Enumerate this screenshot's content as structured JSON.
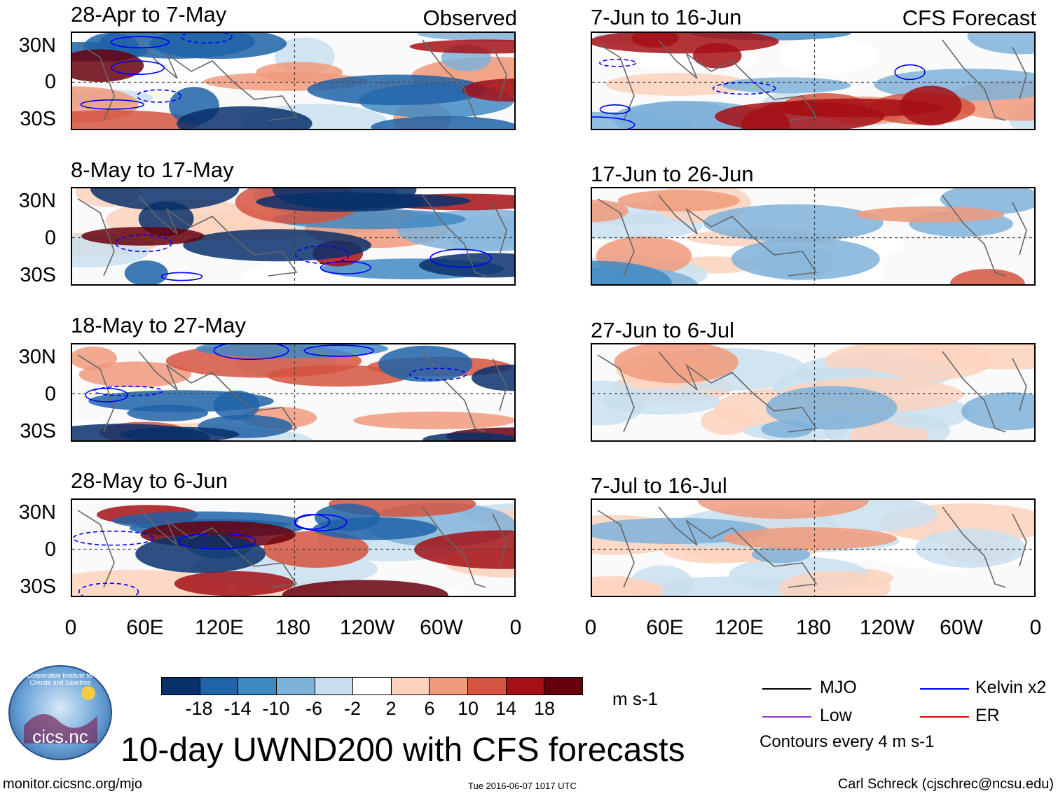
{
  "left_header": "Observed",
  "right_header": "CFS Forecast",
  "panels_left": [
    "28-Apr to 7-May",
    "8-May to 17-May",
    "18-May to 27-May",
    "28-May to 6-Jun"
  ],
  "panels_right": [
    "7-Jun to 16-Jun",
    "17-Jun to 26-Jun",
    "27-Jun to 6-Jul",
    "7-Jul to 16-Jul"
  ],
  "y_ticks": [
    "30N",
    "0",
    "30S"
  ],
  "x_ticks": [
    "0",
    "60E",
    "120E",
    "180",
    "120W",
    "60W",
    "0"
  ],
  "colorbar": {
    "labels": [
      "-18",
      "-14",
      "-10",
      "-6",
      "-2",
      "2",
      "6",
      "10",
      "14",
      "18"
    ],
    "colors": [
      "#08306b",
      "#1f63a8",
      "#3f89c3",
      "#7fb2d9",
      "#c9dfef",
      "#ffffff",
      "#fcd2bd",
      "#f09a7b",
      "#d5543f",
      "#a50f15",
      "#67000d"
    ],
    "units": "m s-1"
  },
  "legend": {
    "items": [
      {
        "label": "MJO",
        "color": "#000000"
      },
      {
        "label": "Kelvin x2",
        "color": "#0000ff"
      },
      {
        "label": "Low",
        "color": "#9932cc"
      },
      {
        "label": "ER",
        "color": "#e00000"
      }
    ],
    "contour_note": "Contours every 4 m s-1"
  },
  "title": "10-day UWND200 with CFS forecasts",
  "logo_text": "cics.nc",
  "logo_ring_text": "Cooperative Institute for Climate and Satellites",
  "footer": {
    "url": "monitor.cicsnc.org/mjo",
    "timestamp": "Tue 2016-06-07 1017 UTC",
    "author": "Carl Schreck (cjschrec@ncsu.edu)"
  },
  "chart_data": {
    "type": "heatmap",
    "variable": "200-hPa zonal wind anomaly",
    "units": "m s-1",
    "x_range": [
      0,
      360
    ],
    "y_range": [
      -40,
      40
    ],
    "series_left": "Observed",
    "series_right": "CFS Forecast",
    "contour_interval": 4
  }
}
